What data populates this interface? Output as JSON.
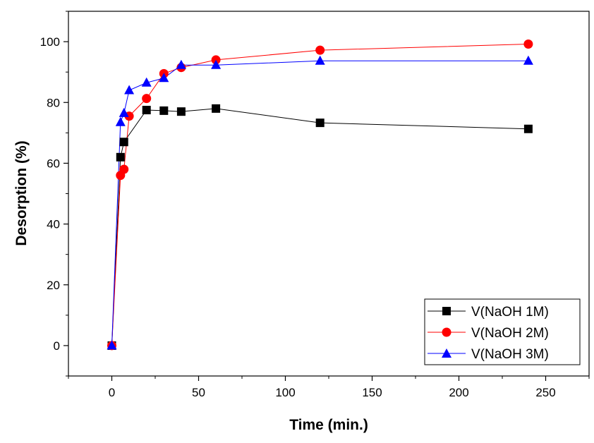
{
  "chart_data": {
    "type": "line",
    "title": "",
    "xlabel": "Time (min.)",
    "ylabel": "Desorption (%)",
    "xlim": [
      -25,
      275
    ],
    "ylim": [
      -10,
      110
    ],
    "xticks": [
      0,
      50,
      100,
      150,
      200,
      250
    ],
    "yticks": [
      0,
      20,
      40,
      60,
      80,
      100
    ],
    "grid": false,
    "legend_position": "bottom-right",
    "series": [
      {
        "name": "V(NaOH 1M)",
        "color": "#000000",
        "marker": "square",
        "x": [
          0,
          5,
          7,
          20,
          30,
          40,
          60,
          120,
          240
        ],
        "y": [
          0,
          62,
          67,
          77.5,
          77.3,
          77,
          78,
          73.3,
          71.3
        ]
      },
      {
        "name": "V(NaOH 2M)",
        "color": "#ff0000",
        "marker": "circle",
        "x": [
          0,
          5,
          7,
          10,
          20,
          30,
          40,
          60,
          120,
          240
        ],
        "y": [
          0,
          56,
          58,
          75.5,
          81.3,
          89.5,
          91.5,
          94,
          97.2,
          99.2
        ]
      },
      {
        "name": "V(NaOH 3M)",
        "color": "#0000ff",
        "marker": "triangle",
        "x": [
          0,
          5,
          7,
          10,
          20,
          30,
          40,
          60,
          120,
          240
        ],
        "y": [
          0,
          73.5,
          76.5,
          84,
          86.5,
          88,
          92.3,
          92.3,
          93.7,
          93.7
        ]
      }
    ]
  }
}
